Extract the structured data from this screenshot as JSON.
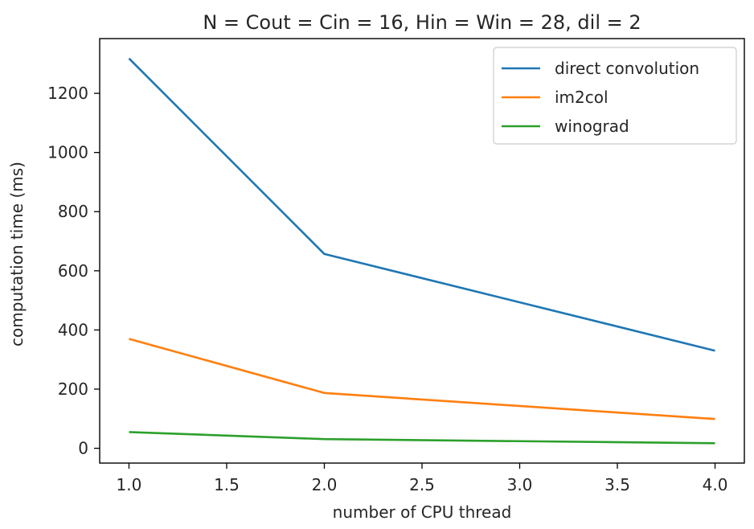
{
  "chart_data": {
    "type": "line",
    "title": "N = Cout = Cin = 16, Hin = Win = 28, dil = 2",
    "xlabel": "number of CPU thread",
    "ylabel": "computation time (ms)",
    "x": [
      1.0,
      2.0,
      4.0
    ],
    "xlim": [
      0.85,
      4.15
    ],
    "ylim": [
      -50,
      1385
    ],
    "xticks": [
      1.0,
      1.5,
      2.0,
      2.5,
      3.0,
      3.5,
      4.0
    ],
    "xtick_labels": [
      "1.0",
      "1.5",
      "2.0",
      "2.5",
      "3.0",
      "3.5",
      "4.0"
    ],
    "yticks": [
      0,
      200,
      400,
      600,
      800,
      1000,
      1200
    ],
    "ytick_labels": [
      "0",
      "200",
      "400",
      "600",
      "800",
      "1000",
      "1200"
    ],
    "grid": false,
    "legend_position": "top-right",
    "series": [
      {
        "name": "direct convolution",
        "values": [
          1318,
          657,
          330
        ],
        "color": "#1f77b4"
      },
      {
        "name": "im2col",
        "values": [
          370,
          187,
          99
        ],
        "color": "#ff7f0e"
      },
      {
        "name": "winograd",
        "values": [
          55,
          31,
          17
        ],
        "color": "#2ca02c"
      }
    ]
  }
}
